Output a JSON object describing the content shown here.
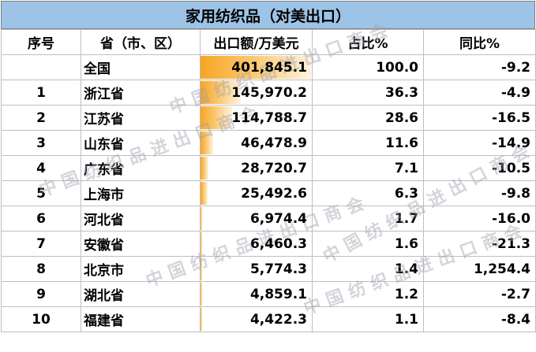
{
  "title": "家用纺织品（对美出口）",
  "headers": [
    "序号",
    "省（市、区）",
    "出口额/万美元",
    "占比%",
    "同比%"
  ],
  "rows": [
    {
      "rank": "",
      "region": "全国",
      "amount": "401,845.1",
      "share": "100.0",
      "yoy": "-9.2",
      "bar": 1.0
    },
    {
      "rank": "1",
      "region": "浙江省",
      "amount": "145,970.2",
      "share": "36.3",
      "yoy": "-4.9",
      "bar": 0.363
    },
    {
      "rank": "2",
      "region": "江苏省",
      "amount": "114,788.7",
      "share": "28.6",
      "yoy": "-16.5",
      "bar": 0.286
    },
    {
      "rank": "3",
      "region": "山东省",
      "amount": "46,478.9",
      "share": "11.6",
      "yoy": "-14.9",
      "bar": 0.116
    },
    {
      "rank": "4",
      "region": "广东省",
      "amount": "28,720.7",
      "share": "7.1",
      "yoy": "-10.5",
      "bar": 0.071
    },
    {
      "rank": "5",
      "region": "上海市",
      "amount": "25,492.6",
      "share": "6.3",
      "yoy": "-9.8",
      "bar": 0.063
    },
    {
      "rank": "6",
      "region": "河北省",
      "amount": "6,974.4",
      "share": "1.7",
      "yoy": "-16.0",
      "bar": 0.017
    },
    {
      "rank": "7",
      "region": "安徽省",
      "amount": "6,460.3",
      "share": "1.6",
      "yoy": "-21.3",
      "bar": 0.016
    },
    {
      "rank": "8",
      "region": "北京市",
      "amount": "5,774.3",
      "share": "1.4",
      "yoy": "1,254.4",
      "bar": 0.014
    },
    {
      "rank": "9",
      "region": "湖北省",
      "amount": "4,859.1",
      "share": "1.2",
      "yoy": "-2.7",
      "bar": 0.012
    },
    {
      "rank": "10",
      "region": "福建省",
      "amount": "4,422.3",
      "share": "1.1",
      "yoy": "-8.4",
      "bar": 0.011
    }
  ],
  "watermark": "中国纺织品进出口商会",
  "colors": {
    "title_bg": "#9dc3e6",
    "bar": "#f6a623"
  }
}
